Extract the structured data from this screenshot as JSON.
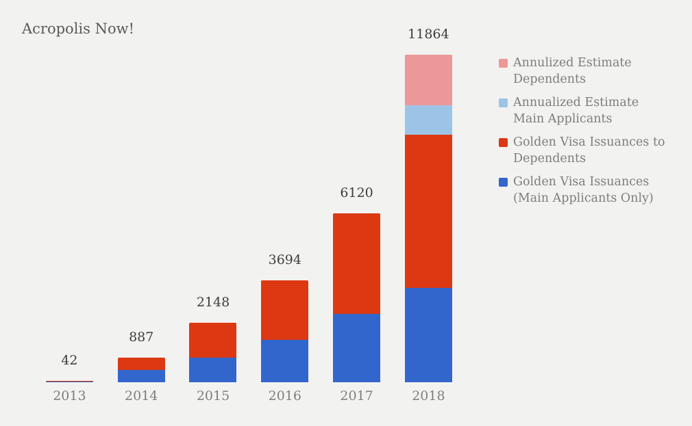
{
  "chart_data": {
    "type": "bar",
    "stacked": true,
    "title": "Acropolis Now!",
    "categories": [
      "2013",
      "2014",
      "2015",
      "2016",
      "2017",
      "2018"
    ],
    "totals": [
      42,
      887,
      2148,
      3694,
      6120,
      11864
    ],
    "series": [
      {
        "name": "Golden Visa Issuances (Main Applicants Only)",
        "color": "#3366cc",
        "values": [
          21,
          440,
          890,
          1540,
          2470,
          3410
        ]
      },
      {
        "name": "Golden Visa Issuances to Dependents",
        "color": "#dc3912",
        "values": [
          21,
          447,
          1258,
          2154,
          3650,
          5550
        ]
      },
      {
        "name": "Annualized Estimate Main Applicants",
        "color": "#9cc4e6",
        "values": [
          0,
          0,
          0,
          0,
          0,
          1067
        ]
      },
      {
        "name": "Annulized Estimate Dependents",
        "color": "#ec9899",
        "values": [
          0,
          0,
          0,
          0,
          0,
          1837
        ]
      }
    ],
    "xlabel": "",
    "ylabel": "",
    "ylim": [
      0,
      11864
    ],
    "grid": false,
    "legend_position": "right",
    "value_labels": "totals shown above each bar"
  },
  "legend": {
    "items": [
      {
        "label": "Annulized Estimate\nDependents",
        "color": "#ec9899"
      },
      {
        "label": "Annualized Estimate\nMain Applicants",
        "color": "#9cc4e6"
      },
      {
        "label": "Golden Visa Issuances to\nDependents",
        "color": "#dc3912"
      },
      {
        "label": "Golden Visa Issuances\n(Main Applicants Only)",
        "color": "#3366cc"
      }
    ]
  },
  "theme": {
    "background": "#f2f2f1",
    "title_color": "#5a5a5a",
    "value_label_color": "#3c3c3c",
    "axis_label_color": "#7d7d7d",
    "legend_text_color": "#7d7d7d"
  }
}
